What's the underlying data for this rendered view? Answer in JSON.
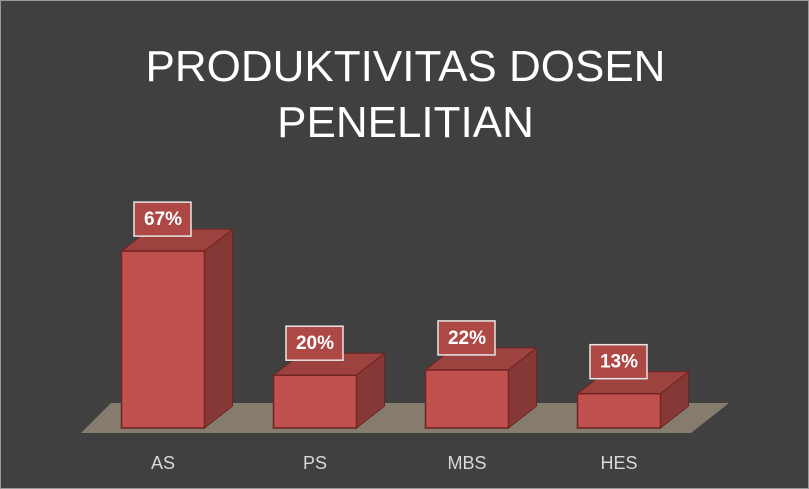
{
  "chart_data": {
    "type": "bar3d",
    "title": "PRODUKTIVITAS DOSEN PENELITIAN",
    "categories": [
      "AS",
      "PS",
      "MBS",
      "HES"
    ],
    "values": [
      67,
      20,
      22,
      13
    ],
    "value_labels": [
      "67%",
      "20%",
      "22%",
      "13%"
    ],
    "color": "#c0504d"
  }
}
